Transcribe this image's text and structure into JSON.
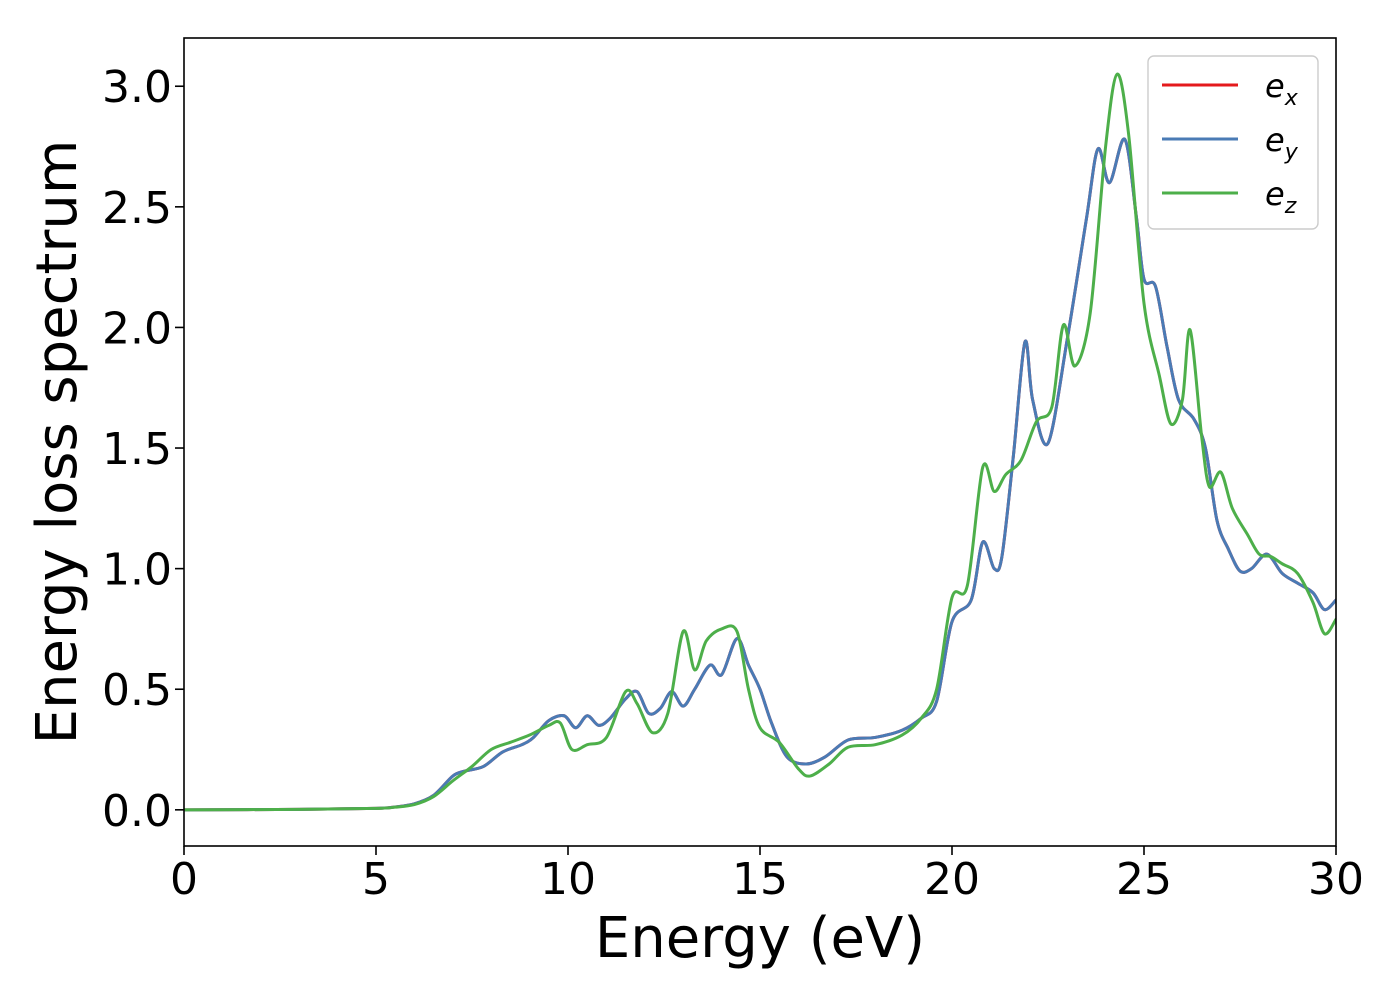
{
  "chart_data": {
    "type": "line",
    "title": "",
    "xlabel": "Energy (eV)",
    "ylabel": "Energy loss spectrum",
    "xlim": [
      0,
      30
    ],
    "ylim": [
      -0.15,
      3.2
    ],
    "xticks": [
      0,
      5,
      10,
      15,
      20,
      25,
      30
    ],
    "xtick_labels": [
      "0",
      "5",
      "10",
      "15",
      "20",
      "25",
      "30"
    ],
    "yticks": [
      0.0,
      0.5,
      1.0,
      1.5,
      2.0,
      2.5,
      3.0
    ],
    "ytick_labels": [
      "0.0",
      "0.5",
      "1.0",
      "1.5",
      "2.0",
      "2.5",
      "3.0"
    ],
    "grid": false,
    "legend_position": "top-right",
    "series": [
      {
        "name": "e_x",
        "label_base": "e",
        "label_sub": "x",
        "color": "#e41a1c",
        "x": [
          0,
          3,
          5,
          5.5,
          6,
          6.5,
          7,
          7.3,
          7.8,
          8.3,
          8.8,
          9.1,
          9.5,
          9.9,
          10.2,
          10.5,
          10.8,
          11.1,
          11.5,
          11.8,
          12.1,
          12.4,
          12.7,
          13.0,
          13.3,
          13.7,
          14.0,
          14.4,
          14.7,
          15.0,
          15.3,
          15.7,
          16.2,
          16.7,
          17.3,
          18.0,
          18.7,
          19.2,
          19.6,
          20.0,
          20.5,
          20.8,
          21.1,
          21.3,
          21.6,
          21.9,
          22.1,
          22.5,
          23.0,
          23.5,
          23.8,
          24.1,
          24.5,
          24.8,
          25.0,
          25.3,
          25.6,
          25.9,
          26.3,
          26.6,
          26.9,
          27.2,
          27.5,
          27.8,
          28.2,
          28.6,
          29.0,
          29.4,
          29.7,
          30.0
        ],
        "y": [
          0,
          0.002,
          0.006,
          0.012,
          0.025,
          0.06,
          0.14,
          0.16,
          0.18,
          0.24,
          0.27,
          0.3,
          0.37,
          0.39,
          0.34,
          0.39,
          0.35,
          0.38,
          0.46,
          0.49,
          0.4,
          0.42,
          0.49,
          0.43,
          0.5,
          0.6,
          0.56,
          0.71,
          0.6,
          0.5,
          0.36,
          0.22,
          0.19,
          0.22,
          0.29,
          0.3,
          0.33,
          0.38,
          0.45,
          0.78,
          0.87,
          1.11,
          1.0,
          1.05,
          1.47,
          1.94,
          1.7,
          1.52,
          1.95,
          2.45,
          2.74,
          2.6,
          2.78,
          2.46,
          2.2,
          2.17,
          1.92,
          1.7,
          1.62,
          1.5,
          1.2,
          1.08,
          0.99,
          1.0,
          1.06,
          0.98,
          0.94,
          0.9,
          0.83,
          0.87
        ]
      },
      {
        "name": "e_y",
        "label_base": "e",
        "label_sub": "y",
        "color": "#4a7bb5",
        "x": [
          0,
          3,
          5,
          5.5,
          6,
          6.5,
          7,
          7.3,
          7.8,
          8.3,
          8.8,
          9.1,
          9.5,
          9.9,
          10.2,
          10.5,
          10.8,
          11.1,
          11.5,
          11.8,
          12.1,
          12.4,
          12.7,
          13.0,
          13.3,
          13.7,
          14.0,
          14.4,
          14.7,
          15.0,
          15.3,
          15.7,
          16.2,
          16.7,
          17.3,
          18.0,
          18.7,
          19.2,
          19.6,
          20.0,
          20.5,
          20.8,
          21.1,
          21.3,
          21.6,
          21.9,
          22.1,
          22.5,
          23.0,
          23.5,
          23.8,
          24.1,
          24.5,
          24.8,
          25.0,
          25.3,
          25.6,
          25.9,
          26.3,
          26.6,
          26.9,
          27.2,
          27.5,
          27.8,
          28.2,
          28.6,
          29.0,
          29.4,
          29.7,
          30.0
        ],
        "y": [
          0,
          0.002,
          0.006,
          0.012,
          0.025,
          0.06,
          0.14,
          0.16,
          0.18,
          0.24,
          0.27,
          0.3,
          0.37,
          0.39,
          0.34,
          0.39,
          0.35,
          0.38,
          0.46,
          0.49,
          0.4,
          0.42,
          0.49,
          0.43,
          0.5,
          0.6,
          0.56,
          0.71,
          0.6,
          0.5,
          0.36,
          0.22,
          0.19,
          0.22,
          0.29,
          0.3,
          0.33,
          0.38,
          0.45,
          0.78,
          0.87,
          1.11,
          1.0,
          1.05,
          1.47,
          1.94,
          1.7,
          1.52,
          1.95,
          2.45,
          2.74,
          2.6,
          2.78,
          2.46,
          2.2,
          2.17,
          1.92,
          1.7,
          1.62,
          1.5,
          1.2,
          1.08,
          0.99,
          1.0,
          1.06,
          0.98,
          0.94,
          0.9,
          0.83,
          0.87
        ]
      },
      {
        "name": "e_z",
        "label_base": "e",
        "label_sub": "z",
        "color": "#4daf4a",
        "x": [
          0,
          3,
          5,
          5.5,
          6,
          6.5,
          7,
          7.5,
          8.0,
          8.5,
          9.0,
          9.5,
          9.8,
          10.1,
          10.5,
          11.0,
          11.5,
          11.8,
          12.2,
          12.6,
          13.0,
          13.3,
          13.6,
          14.0,
          14.4,
          14.7,
          15.0,
          15.5,
          16.0,
          16.3,
          16.8,
          17.3,
          18.0,
          18.7,
          19.2,
          19.6,
          20.0,
          20.4,
          20.8,
          21.1,
          21.4,
          21.8,
          22.2,
          22.6,
          22.9,
          23.2,
          23.6,
          24.0,
          24.3,
          24.6,
          25.0,
          25.4,
          25.7,
          26.0,
          26.2,
          26.5,
          26.7,
          27.0,
          27.3,
          27.7,
          28.0,
          28.3,
          28.6,
          29.0,
          29.4,
          29.7,
          30.0
        ],
        "y": [
          0,
          0.002,
          0.006,
          0.011,
          0.022,
          0.055,
          0.12,
          0.18,
          0.25,
          0.28,
          0.31,
          0.35,
          0.36,
          0.25,
          0.27,
          0.3,
          0.49,
          0.44,
          0.32,
          0.4,
          0.74,
          0.58,
          0.7,
          0.75,
          0.74,
          0.5,
          0.34,
          0.28,
          0.17,
          0.14,
          0.19,
          0.26,
          0.27,
          0.31,
          0.38,
          0.5,
          0.88,
          0.93,
          1.42,
          1.32,
          1.39,
          1.45,
          1.61,
          1.67,
          2.01,
          1.84,
          2.06,
          2.75,
          3.05,
          2.8,
          2.1,
          1.8,
          1.6,
          1.7,
          1.99,
          1.55,
          1.34,
          1.4,
          1.25,
          1.14,
          1.06,
          1.05,
          1.02,
          0.98,
          0.86,
          0.73,
          0.79
        ]
      }
    ]
  }
}
